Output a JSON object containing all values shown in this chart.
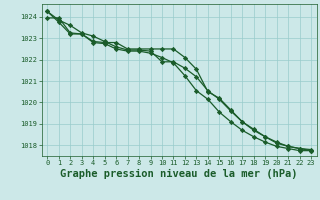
{
  "title": "Graphe pression niveau de la mer (hPa)",
  "bg_color": "#cce8e8",
  "grid_color": "#99cccc",
  "line_color": "#1a5c2a",
  "xlim": [
    -0.5,
    23.5
  ],
  "ylim": [
    1017.5,
    1024.6
  ],
  "yticks": [
    1018,
    1019,
    1020,
    1021,
    1022,
    1023,
    1024
  ],
  "xticks": [
    0,
    1,
    2,
    3,
    4,
    5,
    6,
    7,
    8,
    9,
    10,
    11,
    12,
    13,
    14,
    15,
    16,
    17,
    18,
    19,
    20,
    21,
    22,
    23
  ],
  "series": [
    [
      1024.25,
      1023.85,
      1023.6,
      1023.25,
      1023.1,
      1022.85,
      1022.6,
      1022.45,
      1022.45,
      1022.4,
      1021.9,
      1021.9,
      1021.6,
      1021.2,
      1020.55,
      1020.15,
      1019.6,
      1019.1,
      1018.7,
      1018.4,
      1018.1,
      1017.95,
      1017.85,
      1017.8
    ],
    [
      1023.95,
      1023.95,
      1023.25,
      1023.2,
      1022.85,
      1022.8,
      1022.8,
      1022.5,
      1022.5,
      1022.5,
      1022.5,
      1022.5,
      1022.1,
      1021.55,
      1020.5,
      1020.2,
      1019.65,
      1019.1,
      1018.75,
      1018.4,
      1018.15,
      1017.95,
      1017.85,
      1017.75
    ],
    [
      1024.25,
      1023.75,
      1023.2,
      1023.2,
      1022.8,
      1022.75,
      1022.5,
      1022.4,
      1022.4,
      1022.3,
      1022.1,
      1021.85,
      1021.25,
      1020.55,
      1020.15,
      1019.55,
      1019.1,
      1018.7,
      1018.4,
      1018.15,
      1017.95,
      1017.85,
      1017.75,
      1017.75
    ]
  ],
  "marker": "D",
  "markersize": 2.2,
  "linewidth": 0.9,
  "title_fontsize": 7.5,
  "tick_fontsize": 5.0,
  "figsize": [
    3.2,
    2.0
  ],
  "dpi": 100
}
